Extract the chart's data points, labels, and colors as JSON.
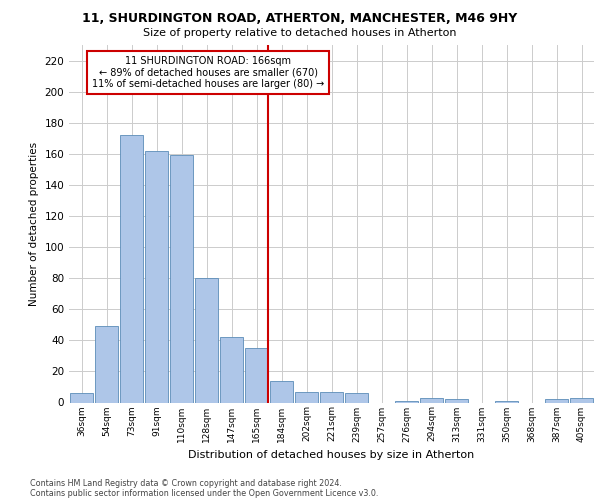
{
  "title_line1": "11, SHURDINGTON ROAD, ATHERTON, MANCHESTER, M46 9HY",
  "title_line2": "Size of property relative to detached houses in Atherton",
  "xlabel": "Distribution of detached houses by size in Atherton",
  "ylabel": "Number of detached properties",
  "categories": [
    "36sqm",
    "54sqm",
    "73sqm",
    "91sqm",
    "110sqm",
    "128sqm",
    "147sqm",
    "165sqm",
    "184sqm",
    "202sqm",
    "221sqm",
    "239sqm",
    "257sqm",
    "276sqm",
    "294sqm",
    "313sqm",
    "331sqm",
    "350sqm",
    "368sqm",
    "387sqm",
    "405sqm"
  ],
  "values": [
    6,
    49,
    172,
    162,
    159,
    80,
    42,
    35,
    14,
    7,
    7,
    6,
    0,
    1,
    3,
    2,
    0,
    1,
    0,
    2,
    3
  ],
  "bar_color": "#aec6e8",
  "bar_edge_color": "#5b8db8",
  "grid_color": "#cccccc",
  "background_color": "#ffffff",
  "annotation_text": "11 SHURDINGTON ROAD: 166sqm\n← 89% of detached houses are smaller (670)\n11% of semi-detached houses are larger (80) →",
  "annotation_box_color": "#ffffff",
  "annotation_box_edge": "#cc0000",
  "vline_index": 7,
  "vline_color": "#cc0000",
  "ylim": [
    0,
    230
  ],
  "yticks": [
    0,
    20,
    40,
    60,
    80,
    100,
    120,
    140,
    160,
    180,
    200,
    220
  ],
  "footer_line1": "Contains HM Land Registry data © Crown copyright and database right 2024.",
  "footer_line2": "Contains public sector information licensed under the Open Government Licence v3.0."
}
